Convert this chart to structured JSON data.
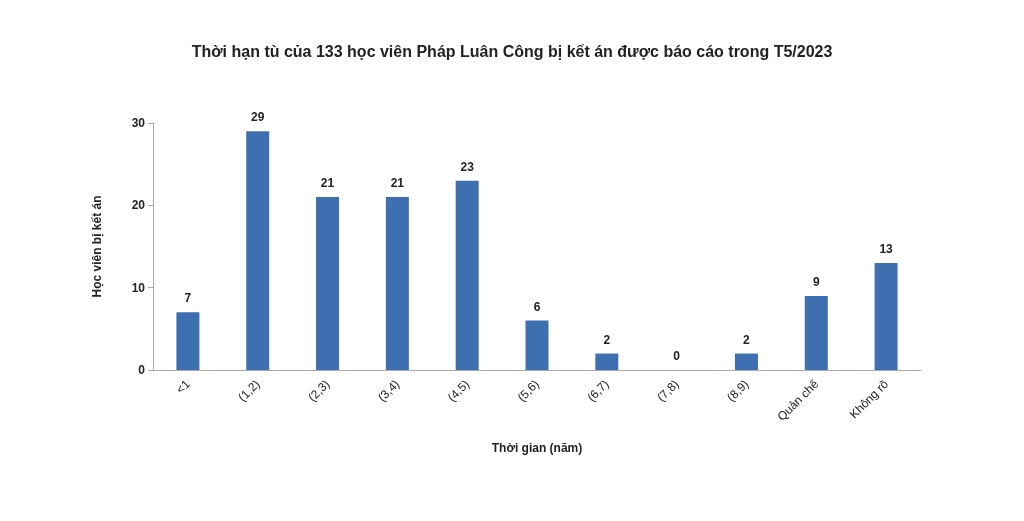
{
  "chart_data": {
    "type": "bar",
    "title": "Thời hạn tù của 133 học viên Pháp Luân Công bị kết án được báo cáo trong T5/2023",
    "xlabel": "Thời gian (năm)",
    "ylabel": "Học viên bị kết án",
    "categories": [
      "<1",
      "(1,2)",
      "(2,3)",
      "(3,4)",
      "(4,5)",
      "(5,6)",
      "(6,7)",
      "(7,8)",
      "(8,9)",
      "Quản chế",
      "Không rõ"
    ],
    "values": [
      7,
      29,
      21,
      21,
      23,
      6,
      2,
      0,
      2,
      9,
      13
    ],
    "color": "#3e6fb0",
    "ylim": [
      0,
      30
    ],
    "yticks": [
      0,
      10,
      20,
      30
    ],
    "grid": false,
    "data_labels": true
  }
}
